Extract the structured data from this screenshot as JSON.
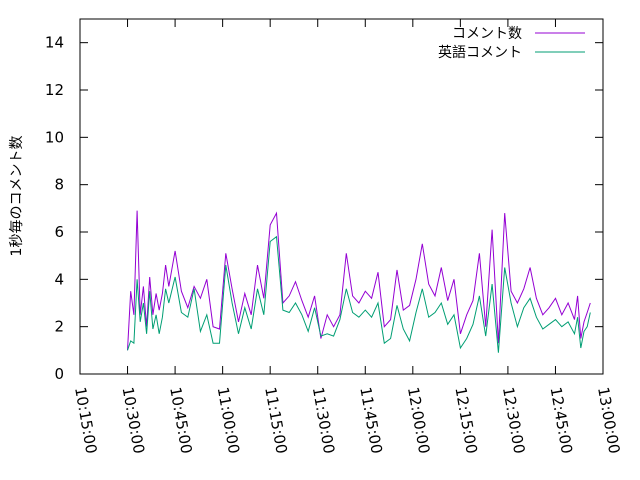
{
  "chart_data": {
    "type": "line",
    "ylabel": "1秒毎のコメント数",
    "xlabel": "",
    "title": "",
    "xlim": [
      "10:15:00",
      "13:00:00"
    ],
    "ylim": [
      0,
      15
    ],
    "xticks": [
      "10:15:00",
      "10:30:00",
      "10:45:00",
      "11:00:00",
      "11:15:00",
      "11:30:00",
      "11:45:00",
      "12:00:00",
      "12:15:00",
      "12:30:00",
      "12:45:00",
      "13:00:00"
    ],
    "yticks": [
      0,
      2,
      4,
      6,
      8,
      10,
      12,
      14
    ],
    "grid": false,
    "legend_position": "top-right",
    "series": [
      {
        "name": "コメント数",
        "color": "#9400d3",
        "x": [
          "10:30:00",
          "10:31:00",
          "10:32:00",
          "10:33:00",
          "10:34:00",
          "10:35:00",
          "10:36:00",
          "10:37:00",
          "10:38:00",
          "10:39:00",
          "10:40:00",
          "10:41:00",
          "10:42:00",
          "10:43:00",
          "10:45:00",
          "10:47:00",
          "10:49:00",
          "10:51:00",
          "10:53:00",
          "10:55:00",
          "10:57:00",
          "10:59:00",
          "11:01:00",
          "11:03:00",
          "11:05:00",
          "11:07:00",
          "11:09:00",
          "11:11:00",
          "11:13:00",
          "11:15:00",
          "11:17:00",
          "11:19:00",
          "11:21:00",
          "11:23:00",
          "11:25:00",
          "11:27:00",
          "11:29:00",
          "11:31:00",
          "11:33:00",
          "11:35:00",
          "11:37:00",
          "11:39:00",
          "11:41:00",
          "11:43:00",
          "11:45:00",
          "11:47:00",
          "11:49:00",
          "11:51:00",
          "11:53:00",
          "11:55:00",
          "11:57:00",
          "11:59:00",
          "12:01:00",
          "12:03:00",
          "12:05:00",
          "12:07:00",
          "12:09:00",
          "12:11:00",
          "12:13:00",
          "12:15:00",
          "12:17:00",
          "12:19:00",
          "12:21:00",
          "12:23:00",
          "12:25:00",
          "12:27:00",
          "12:29:00",
          "12:31:00",
          "12:33:00",
          "12:35:00",
          "12:37:00",
          "12:39:00",
          "12:41:00",
          "12:43:00",
          "12:45:00",
          "12:47:00",
          "12:49:00",
          "12:51:00",
          "12:52:00",
          "12:53:00",
          "12:54:00",
          "12:55:00",
          "12:56:00"
        ],
        "values": [
          1.0,
          3.5,
          2.5,
          6.9,
          2.5,
          3.7,
          2.0,
          4.1,
          2.5,
          3.4,
          2.7,
          3.4,
          4.6,
          3.7,
          5.2,
          3.5,
          2.8,
          3.7,
          3.2,
          4.0,
          2.0,
          1.9,
          5.1,
          3.6,
          2.2,
          3.4,
          2.5,
          4.6,
          3.2,
          6.3,
          6.8,
          3.0,
          3.3,
          3.9,
          3.1,
          2.4,
          3.3,
          1.5,
          2.5,
          2.0,
          2.5,
          5.1,
          3.3,
          3.0,
          3.5,
          3.2,
          4.3,
          2.0,
          2.3,
          4.4,
          2.7,
          2.9,
          4.0,
          5.5,
          3.8,
          3.3,
          4.5,
          3.1,
          4.0,
          1.7,
          2.5,
          3.1,
          5.1,
          2.0,
          6.1,
          1.3,
          6.8,
          3.5,
          3.0,
          3.6,
          4.5,
          3.2,
          2.5,
          2.8,
          3.2,
          2.5,
          3.0,
          2.3,
          3.3,
          1.5,
          2.2,
          2.6,
          3.0
        ]
      },
      {
        "name": "英語コメント",
        "color": "#009e73",
        "x": [
          "10:30:00",
          "10:31:00",
          "10:32:00",
          "10:33:00",
          "10:34:00",
          "10:35:00",
          "10:36:00",
          "10:37:00",
          "10:38:00",
          "10:39:00",
          "10:40:00",
          "10:41:00",
          "10:42:00",
          "10:43:00",
          "10:45:00",
          "10:47:00",
          "10:49:00",
          "10:51:00",
          "10:53:00",
          "10:55:00",
          "10:57:00",
          "10:59:00",
          "11:01:00",
          "11:03:00",
          "11:05:00",
          "11:07:00",
          "11:09:00",
          "11:11:00",
          "11:13:00",
          "11:15:00",
          "11:17:00",
          "11:19:00",
          "11:21:00",
          "11:23:00",
          "11:25:00",
          "11:27:00",
          "11:29:00",
          "11:31:00",
          "11:33:00",
          "11:35:00",
          "11:37:00",
          "11:39:00",
          "11:41:00",
          "11:43:00",
          "11:45:00",
          "11:47:00",
          "11:49:00",
          "11:51:00",
          "11:53:00",
          "11:55:00",
          "11:57:00",
          "11:59:00",
          "12:01:00",
          "12:03:00",
          "12:05:00",
          "12:07:00",
          "12:09:00",
          "12:11:00",
          "12:13:00",
          "12:15:00",
          "12:17:00",
          "12:19:00",
          "12:21:00",
          "12:23:00",
          "12:25:00",
          "12:27:00",
          "12:29:00",
          "12:31:00",
          "12:33:00",
          "12:35:00",
          "12:37:00",
          "12:39:00",
          "12:41:00",
          "12:43:00",
          "12:45:00",
          "12:47:00",
          "12:49:00",
          "12:51:00",
          "12:52:00",
          "12:53:00",
          "12:54:00",
          "12:55:00",
          "12:56:00"
        ],
        "values": [
          1.0,
          1.4,
          1.3,
          4.0,
          2.2,
          3.0,
          1.7,
          3.5,
          1.9,
          2.5,
          1.7,
          2.4,
          3.6,
          3.0,
          4.1,
          2.6,
          2.4,
          3.6,
          1.8,
          2.5,
          1.3,
          1.3,
          4.6,
          3.0,
          1.7,
          2.8,
          1.9,
          3.6,
          2.5,
          5.6,
          5.8,
          2.7,
          2.6,
          3.0,
          2.5,
          1.8,
          2.8,
          1.6,
          1.7,
          1.6,
          2.3,
          3.6,
          2.6,
          2.4,
          2.7,
          2.4,
          3.0,
          1.3,
          1.5,
          2.9,
          1.9,
          1.4,
          2.6,
          3.6,
          2.4,
          2.6,
          3.0,
          2.1,
          2.5,
          1.1,
          1.5,
          2.1,
          3.3,
          1.6,
          3.8,
          0.9,
          4.5,
          3.0,
          2.0,
          2.8,
          3.2,
          2.4,
          1.9,
          2.1,
          2.3,
          2.0,
          2.2,
          1.7,
          2.4,
          1.1,
          1.8,
          2.0,
          2.6
        ]
      }
    ]
  }
}
